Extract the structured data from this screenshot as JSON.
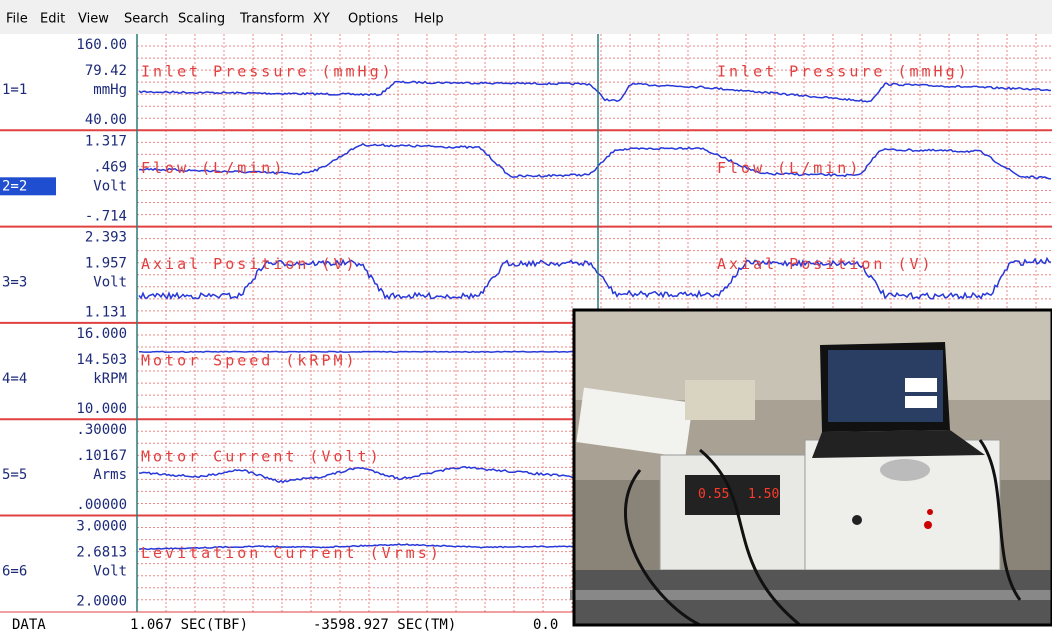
{
  "menu": [
    "File",
    "Edit",
    "View",
    "Search",
    "Scaling",
    "Transform",
    "XY",
    "Options",
    "Help"
  ],
  "channels": [
    {
      "id": "1=1",
      "top": "160.00",
      "current": "79.42",
      "unit": "mmHg",
      "bottom": "40.00",
      "title": "Inlet Pressure (mmHg)"
    },
    {
      "id": "2=2",
      "top": "1.317",
      "current": ".469",
      "unit": "Volt",
      "bottom": "-.714",
      "title": "Flow (L/min)"
    },
    {
      "id": "3=3",
      "top": "2.393",
      "current": "1.957",
      "unit": "Volt",
      "bottom": "1.131",
      "title": "Axial Position (V)"
    },
    {
      "id": "4=4",
      "top": "16.000",
      "current": "14.503",
      "unit": "kRPM",
      "bottom": "10.000",
      "title": "Motor Speed (kRPM)"
    },
    {
      "id": "5=5",
      "top": ".30000",
      "current": ".10167",
      "unit": "Arms",
      "bottom": ".00000",
      "title": "Motor Current (Volt)"
    },
    {
      "id": "6=6",
      "top": "3.0000",
      "current": "2.6813",
      "unit": "Volt",
      "bottom": "2.0000",
      "title": "Levitation Current (Vrms)"
    }
  ],
  "status": {
    "mode": "DATA",
    "tbf": "1.067 SEC(TBF)",
    "tm": "-3598.927 SEC(TM)",
    "extra": "0.0"
  }
}
